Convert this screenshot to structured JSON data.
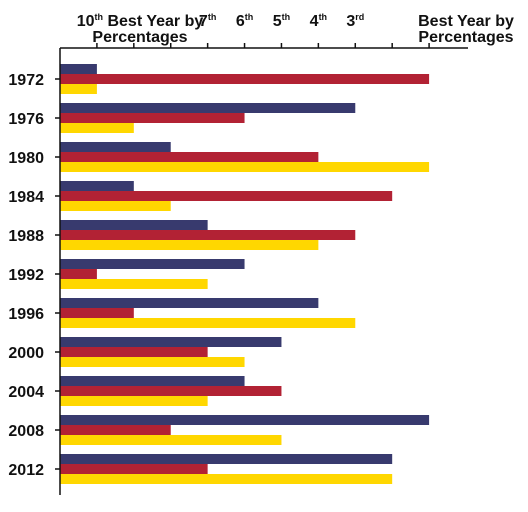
{
  "chart_data": {
    "type": "bar",
    "orientation": "horizontal",
    "categories": [
      "1972",
      "1976",
      "1980",
      "1984",
      "1988",
      "1992",
      "1996",
      "2000",
      "2004",
      "2008",
      "2012"
    ],
    "x_scale": "rank, 10th best (left) to best (right)",
    "xlim": [
      10,
      1
    ],
    "x_tick_labels": [
      {
        "rank": 10,
        "main": "10",
        "sup": "th",
        "tail": " Best Year by",
        "line2": "Percentages"
      },
      {
        "rank": 7,
        "main": "7",
        "sup": "th"
      },
      {
        "rank": 6,
        "main": "6",
        "sup": "th"
      },
      {
        "rank": 5,
        "main": "5",
        "sup": "th"
      },
      {
        "rank": 4,
        "main": "4",
        "sup": "th"
      },
      {
        "rank": 3,
        "main": "3",
        "sup": "rd"
      },
      {
        "rank": 1,
        "main": "Best Year by",
        "line2": "Percentages"
      }
    ],
    "series": [
      {
        "color": "#383a6e",
        "values": [
          10,
          3,
          8,
          9,
          7,
          6,
          4,
          5,
          6,
          1,
          2
        ]
      },
      {
        "color": "#b22234",
        "values": [
          1,
          6,
          4,
          2,
          3,
          10,
          9,
          7,
          5,
          8,
          7
        ]
      },
      {
        "color": "#ffd700",
        "values": [
          10,
          9,
          1,
          8,
          4,
          7,
          3,
          6,
          7,
          5,
          2
        ]
      }
    ],
    "grid": false,
    "legend": "none"
  }
}
